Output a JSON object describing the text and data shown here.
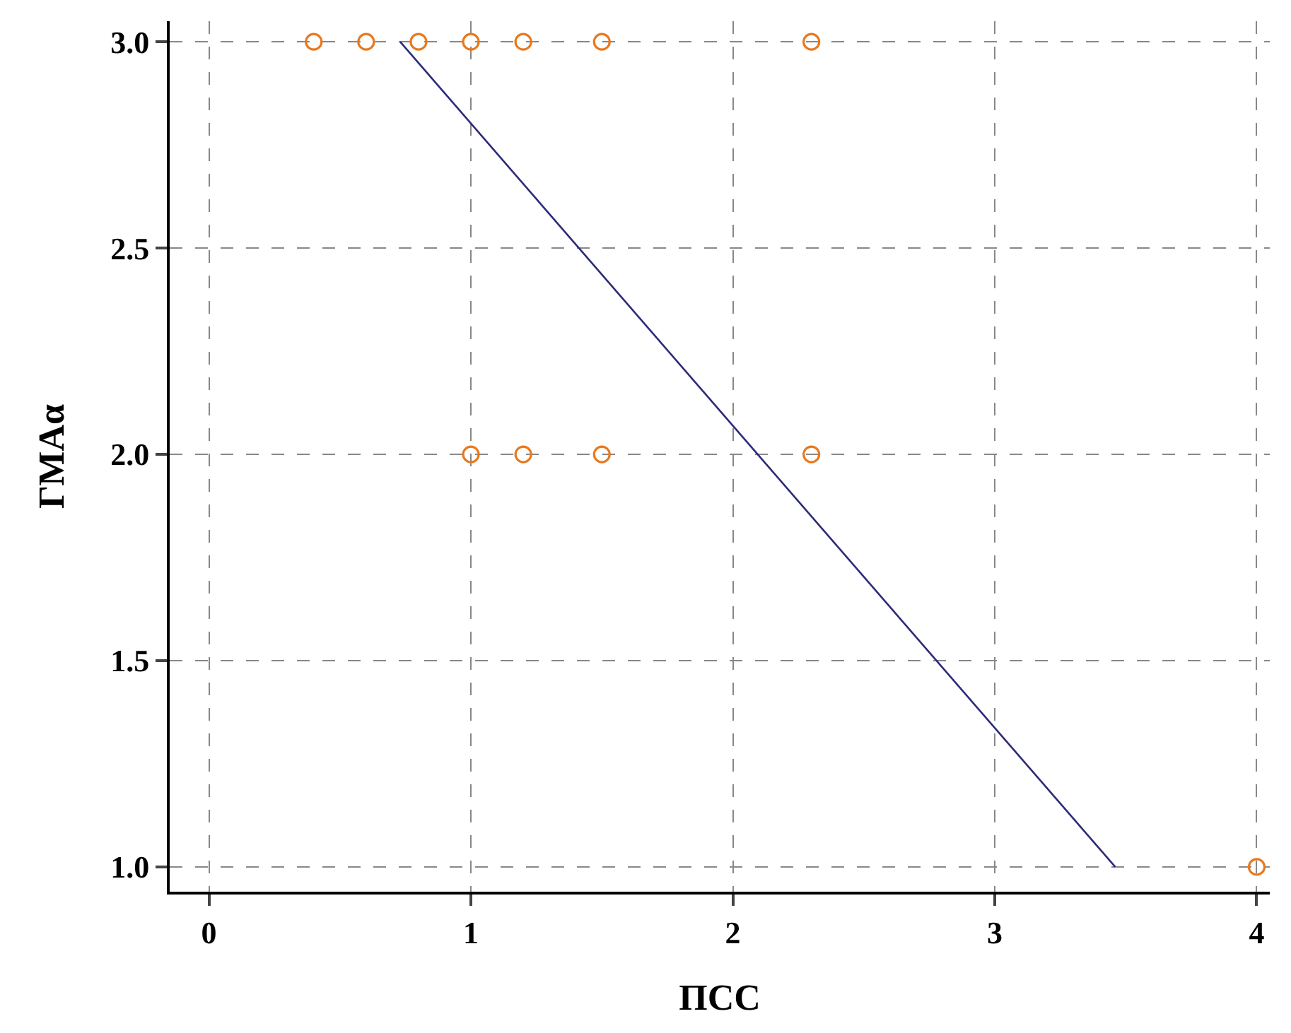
{
  "chart_data": {
    "type": "scatter",
    "xlabel": "ПСС",
    "ylabel": "ГМАα",
    "xlim": [
      -0.15,
      4.05
    ],
    "ylim": [
      0.94,
      3.05
    ],
    "xticks": [
      0,
      1,
      2,
      3,
      4
    ],
    "yticks": [
      {
        "value": 1,
        "label": "1.0"
      },
      {
        "value": 1.5,
        "label": "1.5"
      },
      {
        "value": 2,
        "label": "2.0"
      },
      {
        "value": 2.5,
        "label": "2.5"
      },
      {
        "value": 3,
        "label": "3.0"
      }
    ],
    "grid": true,
    "legend": false,
    "series": [
      {
        "type": "scatter",
        "marker": "circle",
        "color": "#e8791e",
        "x": [
          0.4,
          0.6,
          0.8,
          1.0,
          1.2,
          1.5,
          2.3,
          1.0,
          1.2,
          1.5,
          2.3,
          4.0
        ],
        "values": [
          3,
          3,
          3,
          3,
          3,
          3,
          3,
          2,
          2,
          2,
          2,
          1
        ]
      },
      {
        "type": "line",
        "marker": "none",
        "line_style": "solid",
        "color": "#2b2b78",
        "x": [
          0.73,
          3.46
        ],
        "values": [
          3.0,
          1.0
        ]
      }
    ]
  }
}
